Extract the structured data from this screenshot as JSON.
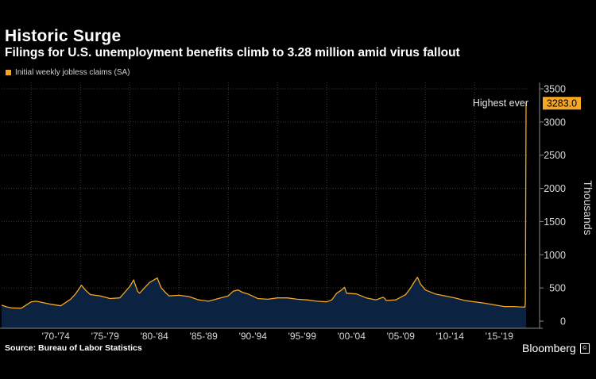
{
  "title": "Historic Surge",
  "subtitle": "Filings for U.S. unemployment benefits climb to 3.28 million amid virus fallout",
  "legend_label": "Initial weekly jobless claims (SA)",
  "source": "Source: Bureau of Labor Statistics",
  "brand": "Bloomberg",
  "brand_badge": "©",
  "colors": {
    "background": "#000000",
    "line": "#f5a623",
    "area": "#0b2340",
    "grid": "#3a3a3a",
    "axis_text": "#d8d8d8"
  },
  "chart_data": {
    "type": "area",
    "title": "Historic Surge",
    "subtitle": "Filings for U.S. unemployment benefits climb to 3.28 million amid virus fallout",
    "ylabel": "Thousands",
    "xlabel": "",
    "ylim": [
      0,
      3500
    ],
    "yticks": [
      0,
      500,
      1000,
      1500,
      2000,
      2500,
      3000,
      3500
    ],
    "xlim": [
      1967,
      2020.3
    ],
    "xtick_labels": [
      {
        "label": "'70-'74",
        "from": 1970,
        "to": 1974
      },
      {
        "label": "'75-'79",
        "from": 1975,
        "to": 1979
      },
      {
        "label": "'80-'84",
        "from": 1980,
        "to": 1984
      },
      {
        "label": "'85-'89",
        "from": 1985,
        "to": 1989
      },
      {
        "label": "'90-'94",
        "from": 1990,
        "to": 1994
      },
      {
        "label": "'95-'99",
        "from": 1995,
        "to": 1999
      },
      {
        "label": "'00-'04",
        "from": 2000,
        "to": 2004
      },
      {
        "label": "'05-'09",
        "from": 2005,
        "to": 2009
      },
      {
        "label": "'10-'14",
        "from": 2010,
        "to": 2014
      },
      {
        "label": "'15-'19",
        "from": 2015,
        "to": 2019
      }
    ],
    "grid": true,
    "legend_position": "top-left",
    "series": [
      {
        "name": "Initial weekly jobless claims (SA)",
        "x": [
          1967,
          1967.5,
          1968,
          1969,
          1970,
          1970.5,
          1971,
          1972,
          1973,
          1974,
          1974.5,
          1975.1,
          1975.5,
          1976,
          1977,
          1978,
          1979,
          1980,
          1980.4,
          1980.8,
          1981,
          1981.5,
          1982,
          1982.8,
          1983.2,
          1983.7,
          1984,
          1985,
          1986,
          1987,
          1988,
          1989,
          1990,
          1990.5,
          1991,
          1991.5,
          1992,
          1993,
          1994,
          1995,
          1996,
          1997,
          1998,
          1999,
          2000,
          2000.5,
          2001,
          2001.5,
          2001.8,
          2002,
          2003,
          2004,
          2005,
          2005.7,
          2005.9,
          2006,
          2007,
          2008,
          2008.5,
          2009,
          2009.2,
          2009.5,
          2010,
          2011,
          2012,
          2013,
          2014,
          2015,
          2016,
          2017,
          2018,
          2019,
          2019.5,
          2020.1,
          2020.15,
          2020.22,
          2020.23
        ],
        "values": [
          240,
          215,
          200,
          195,
          290,
          300,
          285,
          255,
          230,
          330,
          410,
          540,
          470,
          400,
          380,
          340,
          350,
          520,
          620,
          450,
          420,
          500,
          580,
          650,
          500,
          420,
          380,
          390,
          370,
          320,
          300,
          340,
          380,
          450,
          470,
          430,
          410,
          340,
          330,
          350,
          350,
          330,
          320,
          300,
          290,
          320,
          420,
          470,
          510,
          420,
          410,
          350,
          320,
          360,
          340,
          310,
          320,
          400,
          500,
          620,
          660,
          560,
          470,
          410,
          380,
          350,
          310,
          290,
          270,
          245,
          220,
          220,
          215,
          211,
          282,
          3283,
          3283
        ]
      }
    ],
    "annotations": [
      {
        "text": "Highest ever",
        "x": 2020.2,
        "y": 3283
      }
    ],
    "last_value_label": "3283.0"
  }
}
